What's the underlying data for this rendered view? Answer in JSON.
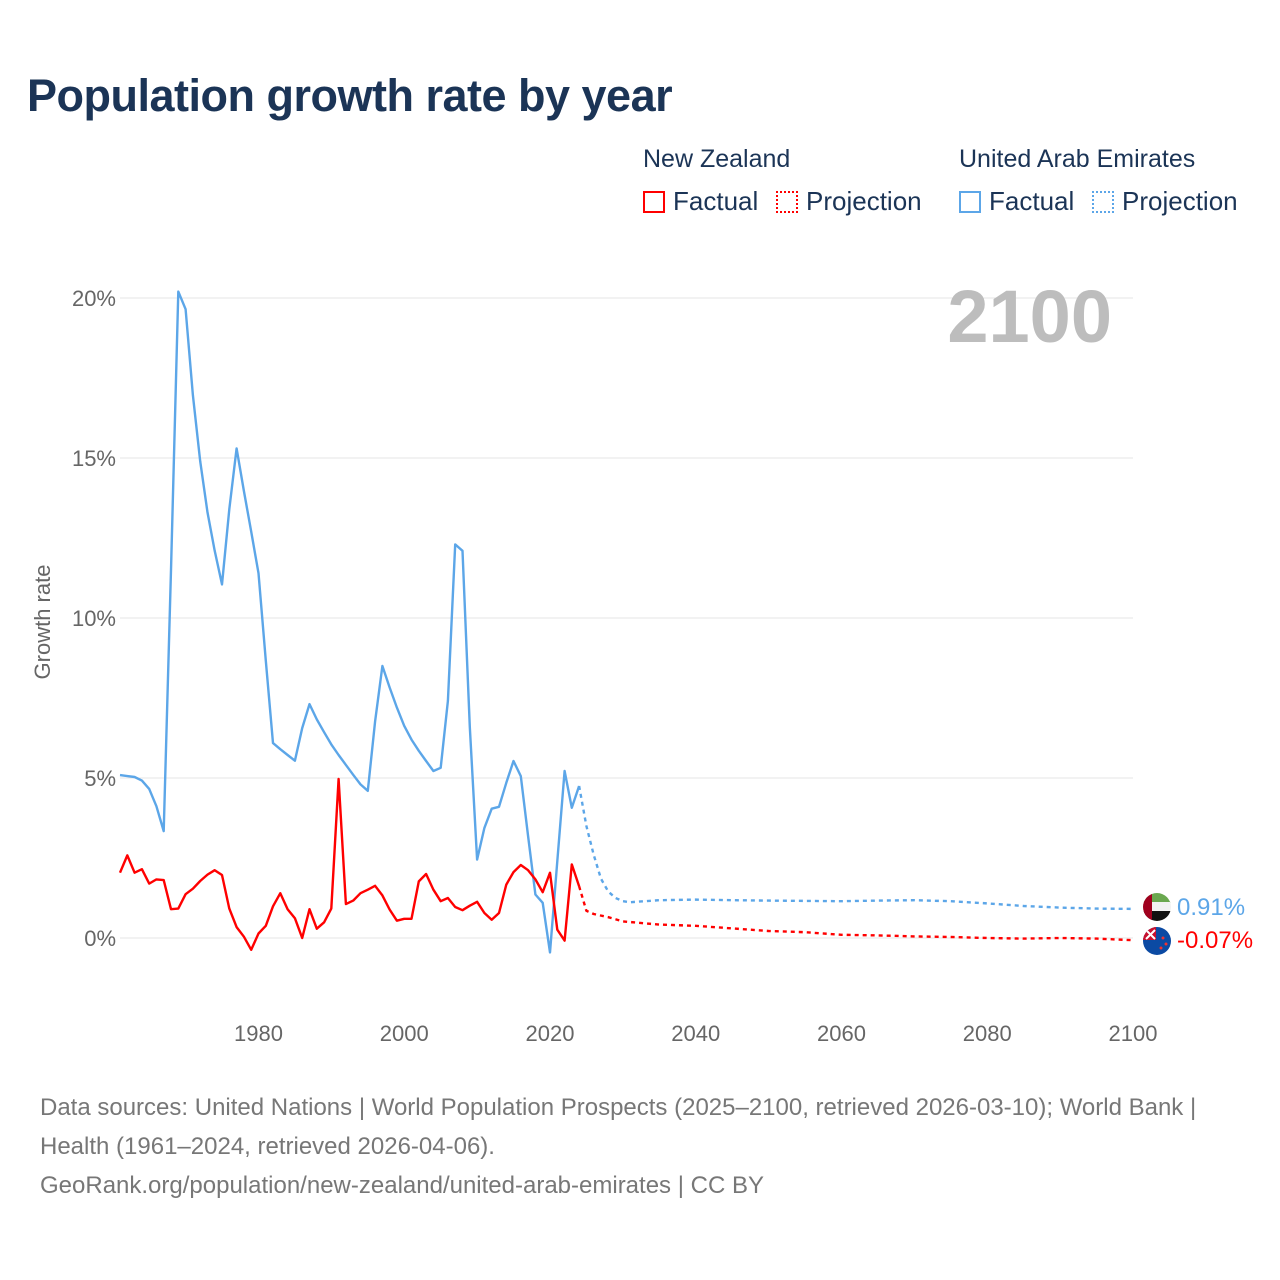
{
  "title": "Population growth rate by year",
  "legend": {
    "groups": [
      {
        "country": "New Zealand",
        "factual": "Factual",
        "projection": "Projection",
        "color": "#ff0000"
      },
      {
        "country": "United Arab Emirates",
        "factual": "Factual",
        "projection": "Projection",
        "color": "#5ca6e8"
      }
    ]
  },
  "year_watermark": "2100",
  "end_labels": {
    "uae": "0.91%",
    "nz": "-0.07%"
  },
  "source_lines": [
    "Data sources: United Nations | World Population Prospects (2025–2100, retrieved 2026-03-10); World Bank | Health (1961–2024, retrieved 2026-04-06).",
    "GeoRank.org/population/new-zealand/united-arab-emirates | CC BY"
  ],
  "chart_data": {
    "type": "line",
    "title": "Population growth rate by year",
    "xlabel": "",
    "ylabel": "Growth rate",
    "xlim": [
      1961,
      2100
    ],
    "ylim": [
      -2,
      22
    ],
    "x_ticks": [
      1980,
      2000,
      2020,
      2040,
      2060,
      2080,
      2100
    ],
    "x_tick_labels": [
      "1980",
      "2000",
      "2020",
      "2040",
      "2060",
      "2080",
      "2100"
    ],
    "y_ticks": [
      0,
      5,
      10,
      15,
      20
    ],
    "y_tick_labels": [
      "0%",
      "5%",
      "10%",
      "15%",
      "20%"
    ],
    "grid": true,
    "legend_position": "top-right",
    "series": [
      {
        "name": "United Arab Emirates Factual",
        "color": "#5ca6e8",
        "style": "solid",
        "start_year": 1961,
        "values": [
          5.09,
          5.06,
          5.03,
          4.92,
          4.66,
          4.12,
          3.34,
          11.5,
          20.2,
          19.65,
          16.96,
          14.9,
          13.3,
          12.1,
          11.05,
          13.4,
          15.3,
          13.97,
          12.7,
          11.4,
          8.67,
          6.09,
          5.9,
          5.72,
          5.54,
          6.56,
          7.31,
          6.83,
          6.43,
          6.05,
          5.72,
          5.41,
          5.1,
          4.8,
          4.6,
          6.77,
          8.5,
          7.83,
          7.2,
          6.63,
          6.2,
          5.85,
          5.53,
          5.22,
          5.32,
          7.41,
          12.3,
          12.1,
          6.6,
          2.45,
          3.44,
          4.04,
          4.1,
          4.85,
          5.53,
          5.06,
          3.18,
          1.36,
          1.1,
          -0.45,
          2.4,
          5.22,
          4.07,
          4.75
        ]
      },
      {
        "name": "United Arab Emirates Projection",
        "color": "#5ca6e8",
        "style": "dotted",
        "points": [
          [
            2024,
            4.75
          ],
          [
            2025,
            3.5
          ],
          [
            2026,
            2.6
          ],
          [
            2027,
            1.85
          ],
          [
            2028,
            1.45
          ],
          [
            2029,
            1.25
          ],
          [
            2030,
            1.15
          ],
          [
            2031,
            1.12
          ],
          [
            2035,
            1.18
          ],
          [
            2040,
            1.2
          ],
          [
            2045,
            1.18
          ],
          [
            2050,
            1.17
          ],
          [
            2055,
            1.16
          ],
          [
            2060,
            1.15
          ],
          [
            2065,
            1.17
          ],
          [
            2070,
            1.18
          ],
          [
            2075,
            1.15
          ],
          [
            2080,
            1.08
          ],
          [
            2085,
            1.0
          ],
          [
            2090,
            0.95
          ],
          [
            2095,
            0.92
          ],
          [
            2100,
            0.91
          ]
        ]
      },
      {
        "name": "New Zealand Factual",
        "color": "#ff0000",
        "style": "solid",
        "start_year": 1961,
        "values": [
          2.04,
          2.58,
          2.04,
          2.15,
          1.7,
          1.83,
          1.81,
          0.9,
          0.92,
          1.37,
          1.54,
          1.78,
          1.98,
          2.12,
          1.97,
          0.92,
          0.34,
          0.04,
          -0.37,
          0.14,
          0.38,
          0.99,
          1.4,
          0.9,
          0.62,
          0.0,
          0.9,
          0.29,
          0.49,
          0.92,
          4.97,
          1.06,
          1.17,
          1.4,
          1.51,
          1.63,
          1.33,
          0.89,
          0.54,
          0.6,
          0.6,
          1.77,
          2.0,
          1.51,
          1.15,
          1.25,
          0.97,
          0.87,
          1.01,
          1.13,
          0.78,
          0.57,
          0.78,
          1.67,
          2.06,
          2.28,
          2.12,
          1.83,
          1.43,
          2.04,
          0.26,
          -0.08,
          2.3,
          1.62
        ]
      },
      {
        "name": "New Zealand Projection",
        "color": "#ff0000",
        "style": "dotted",
        "points": [
          [
            2024,
            1.62
          ],
          [
            2025,
            0.85
          ],
          [
            2026,
            0.75
          ],
          [
            2028,
            0.65
          ],
          [
            2030,
            0.52
          ],
          [
            2035,
            0.42
          ],
          [
            2040,
            0.38
          ],
          [
            2045,
            0.3
          ],
          [
            2050,
            0.22
          ],
          [
            2055,
            0.18
          ],
          [
            2060,
            0.1
          ],
          [
            2065,
            0.08
          ],
          [
            2070,
            0.05
          ],
          [
            2075,
            0.03
          ],
          [
            2080,
            0.0
          ],
          [
            2085,
            -0.02
          ],
          [
            2090,
            0.0
          ],
          [
            2095,
            -0.02
          ],
          [
            2100,
            -0.07
          ]
        ]
      }
    ]
  }
}
